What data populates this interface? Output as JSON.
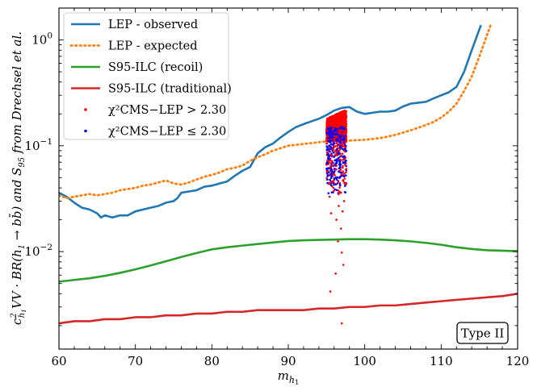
{
  "chart_data": {
    "type": "line",
    "xlabel": "m_h1",
    "ylabel": "c²_h1VV · BR(h1 → bb̄) and S95 from Drechsel et al.",
    "xlim": [
      60,
      120
    ],
    "ylim": [
      0.0012,
      2.0
    ],
    "yscale": "log",
    "xticks": [
      "60",
      "70",
      "80",
      "90",
      "100",
      "110",
      "120"
    ],
    "yticks": [
      "10^-2",
      "10^-1",
      "10^0"
    ],
    "annotation": "Type II",
    "legend_position": "upper-left",
    "series": [
      {
        "name": "LEP - observed",
        "style": "solid",
        "color": "#1f77b4",
        "x": [
          60,
          61,
          62,
          63,
          64,
          65,
          65.5,
          66,
          67,
          68,
          69,
          70,
          71,
          72,
          73,
          74,
          75,
          75.5,
          76,
          77,
          78,
          79,
          80,
          81,
          82,
          83,
          84,
          85,
          86,
          87,
          88,
          89,
          90,
          91,
          92,
          93,
          94,
          95,
          96,
          97,
          98,
          99,
          100,
          101,
          102,
          103,
          104,
          105,
          106,
          107,
          108,
          109,
          110,
          111,
          112,
          113,
          114,
          115.2
        ],
        "y": [
          0.036,
          0.033,
          0.029,
          0.026,
          0.025,
          0.023,
          0.021,
          0.022,
          0.021,
          0.022,
          0.022,
          0.024,
          0.025,
          0.026,
          0.027,
          0.029,
          0.03,
          0.032,
          0.036,
          0.037,
          0.038,
          0.041,
          0.042,
          0.044,
          0.046,
          0.052,
          0.058,
          0.063,
          0.085,
          0.097,
          0.105,
          0.12,
          0.135,
          0.15,
          0.16,
          0.17,
          0.18,
          0.195,
          0.215,
          0.228,
          0.232,
          0.21,
          0.2,
          0.205,
          0.21,
          0.21,
          0.215,
          0.235,
          0.25,
          0.255,
          0.26,
          0.28,
          0.3,
          0.32,
          0.36,
          0.5,
          0.8,
          1.38
        ]
      },
      {
        "name": "LEP - expected",
        "style": "dotted",
        "color": "#ff7f0e",
        "x": [
          60,
          61,
          62,
          63,
          64,
          65,
          66,
          67,
          68,
          69,
          70,
          71,
          72,
          73,
          74,
          75,
          76,
          77,
          78,
          79,
          80,
          81,
          82,
          83,
          84,
          85,
          86,
          87,
          88,
          89,
          90,
          91,
          92,
          93,
          94,
          95,
          96,
          97,
          98,
          99,
          100,
          101,
          102,
          103,
          104,
          105,
          106,
          107,
          108,
          109,
          110,
          111,
          112,
          113,
          114,
          115,
          116.5
        ],
        "y": [
          0.034,
          0.032,
          0.033,
          0.034,
          0.035,
          0.034,
          0.035,
          0.036,
          0.038,
          0.039,
          0.04,
          0.042,
          0.043,
          0.045,
          0.047,
          0.044,
          0.043,
          0.045,
          0.048,
          0.051,
          0.053,
          0.056,
          0.06,
          0.062,
          0.065,
          0.072,
          0.078,
          0.083,
          0.09,
          0.095,
          0.1,
          0.102,
          0.104,
          0.106,
          0.108,
          0.11,
          0.111,
          0.112,
          0.112,
          0.113,
          0.114,
          0.116,
          0.118,
          0.122,
          0.127,
          0.133,
          0.14,
          0.148,
          0.157,
          0.168,
          0.185,
          0.21,
          0.25,
          0.33,
          0.45,
          0.7,
          1.4
        ]
      },
      {
        "name": "S95-ILC (recoil)",
        "style": "solid",
        "color": "#2ca02c",
        "x": [
          60,
          62,
          64,
          66,
          68,
          70,
          72,
          74,
          76,
          78,
          80,
          82,
          84,
          86,
          88,
          90,
          92,
          94,
          96,
          98,
          100,
          102,
          104,
          106,
          108,
          110,
          112,
          114,
          116,
          118,
          120
        ],
        "y": [
          0.0052,
          0.0054,
          0.0056,
          0.0059,
          0.0063,
          0.0068,
          0.0074,
          0.0081,
          0.0089,
          0.0097,
          0.0105,
          0.011,
          0.0114,
          0.0118,
          0.0122,
          0.0126,
          0.0128,
          0.0129,
          0.013,
          0.0131,
          0.0131,
          0.013,
          0.0128,
          0.0125,
          0.0121,
          0.0116,
          0.011,
          0.0106,
          0.0103,
          0.0102,
          0.0101
        ]
      },
      {
        "name": "S95-ILC (traditional)",
        "style": "solid",
        "color": "#d62728",
        "x": [
          60,
          62,
          64,
          66,
          68,
          70,
          72,
          74,
          76,
          78,
          80,
          82,
          84,
          86,
          88,
          90,
          92,
          94,
          96,
          98,
          100,
          102,
          104,
          106,
          108,
          110,
          112,
          114,
          116,
          118,
          120
        ],
        "y": [
          0.0021,
          0.0022,
          0.0022,
          0.0023,
          0.0023,
          0.0024,
          0.0024,
          0.0025,
          0.0025,
          0.0026,
          0.0026,
          0.0027,
          0.0027,
          0.0028,
          0.0028,
          0.0028,
          0.0028,
          0.0029,
          0.0029,
          0.003,
          0.003,
          0.0031,
          0.0031,
          0.0032,
          0.0033,
          0.0034,
          0.0035,
          0.0036,
          0.0037,
          0.0038,
          0.004
        ]
      }
    ],
    "scatter": [
      {
        "name": "χ²_CMS-LEP > 2.30",
        "color": "#ff0000",
        "x_range": [
          95.0,
          97.6
        ],
        "y_band": [
          0.06,
          0.22
        ],
        "outliers": [
          [
            95.5,
            0.0042
          ],
          [
            96.2,
            0.0062
          ],
          [
            97.0,
            0.0098
          ],
          [
            96.5,
            0.0125
          ],
          [
            96.9,
            0.0165
          ],
          [
            96.3,
            0.02
          ],
          [
            95.6,
            0.023
          ],
          [
            97.1,
            0.024
          ],
          [
            96.6,
            0.027
          ],
          [
            97.3,
            0.03
          ],
          [
            95.4,
            0.033
          ],
          [
            96.8,
            0.036
          ],
          [
            97.0,
            0.0021
          ],
          [
            97.2,
            0.0075
          ],
          [
            95.9,
            0.04
          ],
          [
            97.4,
            0.044
          ]
        ]
      },
      {
        "name": "χ²_CMS-LEP ≤ 2.30",
        "color": "#0000ff",
        "x_range": [
          95.0,
          97.6
        ],
        "y_band": [
          0.034,
          0.16
        ]
      }
    ]
  },
  "legend": [
    {
      "id": "obs",
      "label": "LEP - observed",
      "style": "solid",
      "color": "#1f77b4"
    },
    {
      "id": "exp",
      "label": "LEP - expected",
      "style": "dotted",
      "color": "#ff7f0e"
    },
    {
      "id": "recoil",
      "label": "S95-ILC (recoil)",
      "style": "solid",
      "color": "#2ca02c"
    },
    {
      "id": "trad",
      "label": "S95-ILC (traditional)",
      "style": "solid",
      "color": "#d62728"
    },
    {
      "id": "red-pts",
      "label": "χ²CMS−LEP > 2.30",
      "style": "point",
      "color": "#ff0000"
    },
    {
      "id": "blue-pts",
      "label": "χ²CMS−LEP ≤ 2.30",
      "style": "point",
      "color": "#0000ff"
    }
  ]
}
